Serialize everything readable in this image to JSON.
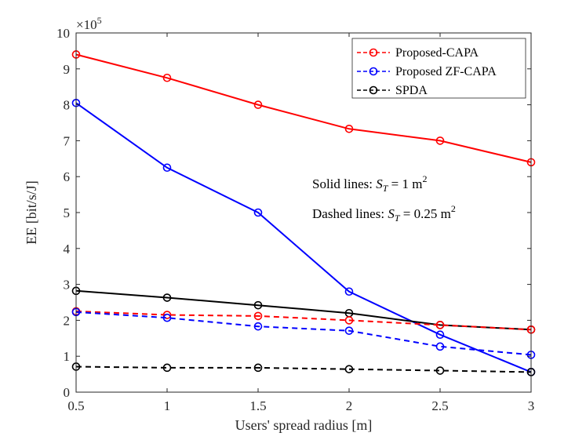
{
  "chart_data": {
    "type": "line",
    "title": "",
    "xlabel": "Users' spread radius [m]",
    "ylabel": "EE [bit/s/J]",
    "y_multiplier": "×10",
    "y_multiplier_exp": "5",
    "x": [
      0.5,
      1,
      1.5,
      2,
      2.5,
      3
    ],
    "xlim": [
      0.5,
      3
    ],
    "ylim": [
      0,
      10
    ],
    "xticks": [
      "0.5",
      "1",
      "1.5",
      "2",
      "2.5",
      "3"
    ],
    "yticks": [
      "0",
      "1",
      "2",
      "3",
      "4",
      "5",
      "6",
      "7",
      "8",
      "9",
      "10"
    ],
    "legend_position": "top-right",
    "legend": [
      {
        "label": "Proposed-CAPA",
        "color": "#ff0000"
      },
      {
        "label": "Proposed ZF-CAPA",
        "color": "#0000ff"
      },
      {
        "label": "SPDA",
        "color": "#000000"
      }
    ],
    "series": [
      {
        "name": "Proposed-CAPA",
        "style": "solid",
        "area": "1 m^2",
        "color": "#ff0000",
        "values": [
          9.4,
          8.75,
          8.0,
          7.33,
          7.0,
          6.4
        ]
      },
      {
        "name": "Proposed ZF-CAPA",
        "style": "solid",
        "area": "1 m^2",
        "color": "#0000ff",
        "values": [
          8.05,
          6.25,
          5.0,
          2.8,
          1.6,
          0.56
        ]
      },
      {
        "name": "SPDA",
        "style": "solid",
        "area": "1 m^2",
        "color": "#000000",
        "values": [
          2.82,
          2.63,
          2.42,
          2.2,
          1.87,
          1.74
        ]
      },
      {
        "name": "Proposed-CAPA",
        "style": "dashed",
        "area": "0.25 m^2",
        "color": "#ff0000",
        "values": [
          2.25,
          2.15,
          2.12,
          2.0,
          1.87,
          1.74
        ]
      },
      {
        "name": "Proposed ZF-CAPA",
        "style": "dashed",
        "area": "0.25 m^2",
        "color": "#0000ff",
        "values": [
          2.23,
          2.07,
          1.83,
          1.71,
          1.27,
          1.04
        ]
      },
      {
        "name": "SPDA",
        "style": "dashed",
        "area": "0.25 m^2",
        "color": "#000000",
        "values": [
          0.71,
          0.68,
          0.68,
          0.64,
          0.6,
          0.56
        ]
      }
    ],
    "annotations": [
      {
        "prefix": "Solid lines:  ",
        "var": "S",
        "sub": "T",
        "eq": " = 1 m",
        "sup": "2"
      },
      {
        "prefix": "Dashed lines:  ",
        "var": "S",
        "sub": "T",
        "eq": " = 0.25 m",
        "sup": "2"
      }
    ]
  }
}
